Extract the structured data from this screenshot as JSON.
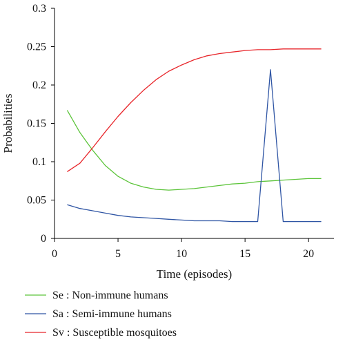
{
  "chart_data": {
    "type": "line",
    "xlabel": "Time (episodes)",
    "ylabel": "Probabilities",
    "xlim": [
      0,
      22
    ],
    "ylim": [
      0,
      0.3
    ],
    "xticks": [
      "0",
      "5",
      "10",
      "15",
      "20"
    ],
    "yticks": [
      "0",
      "0.05",
      "0.1",
      "0.15",
      "0.2",
      "0.25",
      "0.3"
    ],
    "x": [
      1,
      2,
      3,
      4,
      5,
      6,
      7,
      8,
      9,
      10,
      11,
      12,
      13,
      14,
      15,
      16,
      17,
      18,
      19,
      20,
      21
    ],
    "series": [
      {
        "name": "Se : Non-immune humans",
        "color": "#5cc43a",
        "values": [
          0.167,
          0.138,
          0.115,
          0.095,
          0.081,
          0.072,
          0.067,
          0.064,
          0.063,
          0.064,
          0.065,
          0.067,
          0.069,
          0.071,
          0.072,
          0.074,
          0.075,
          0.076,
          0.077,
          0.078,
          0.078
        ]
      },
      {
        "name": "Sa : Semi-immune humans",
        "color": "#2f55a4",
        "values": [
          0.044,
          0.039,
          0.036,
          0.033,
          0.03,
          0.028,
          0.027,
          0.026,
          0.025,
          0.024,
          0.023,
          0.023,
          0.023,
          0.022,
          0.022,
          0.022,
          0.22,
          0.022,
          0.022,
          0.022,
          0.022
        ]
      },
      {
        "name": "Sv : Susceptible mosquitoes",
        "color": "#e8262b",
        "values": [
          0.087,
          0.098,
          0.118,
          0.139,
          0.159,
          0.177,
          0.193,
          0.207,
          0.218,
          0.226,
          0.233,
          0.238,
          0.241,
          0.243,
          0.245,
          0.246,
          0.246,
          0.247,
          0.247,
          0.247,
          0.247
        ]
      }
    ],
    "grid": false,
    "legend_position": "bottom"
  }
}
